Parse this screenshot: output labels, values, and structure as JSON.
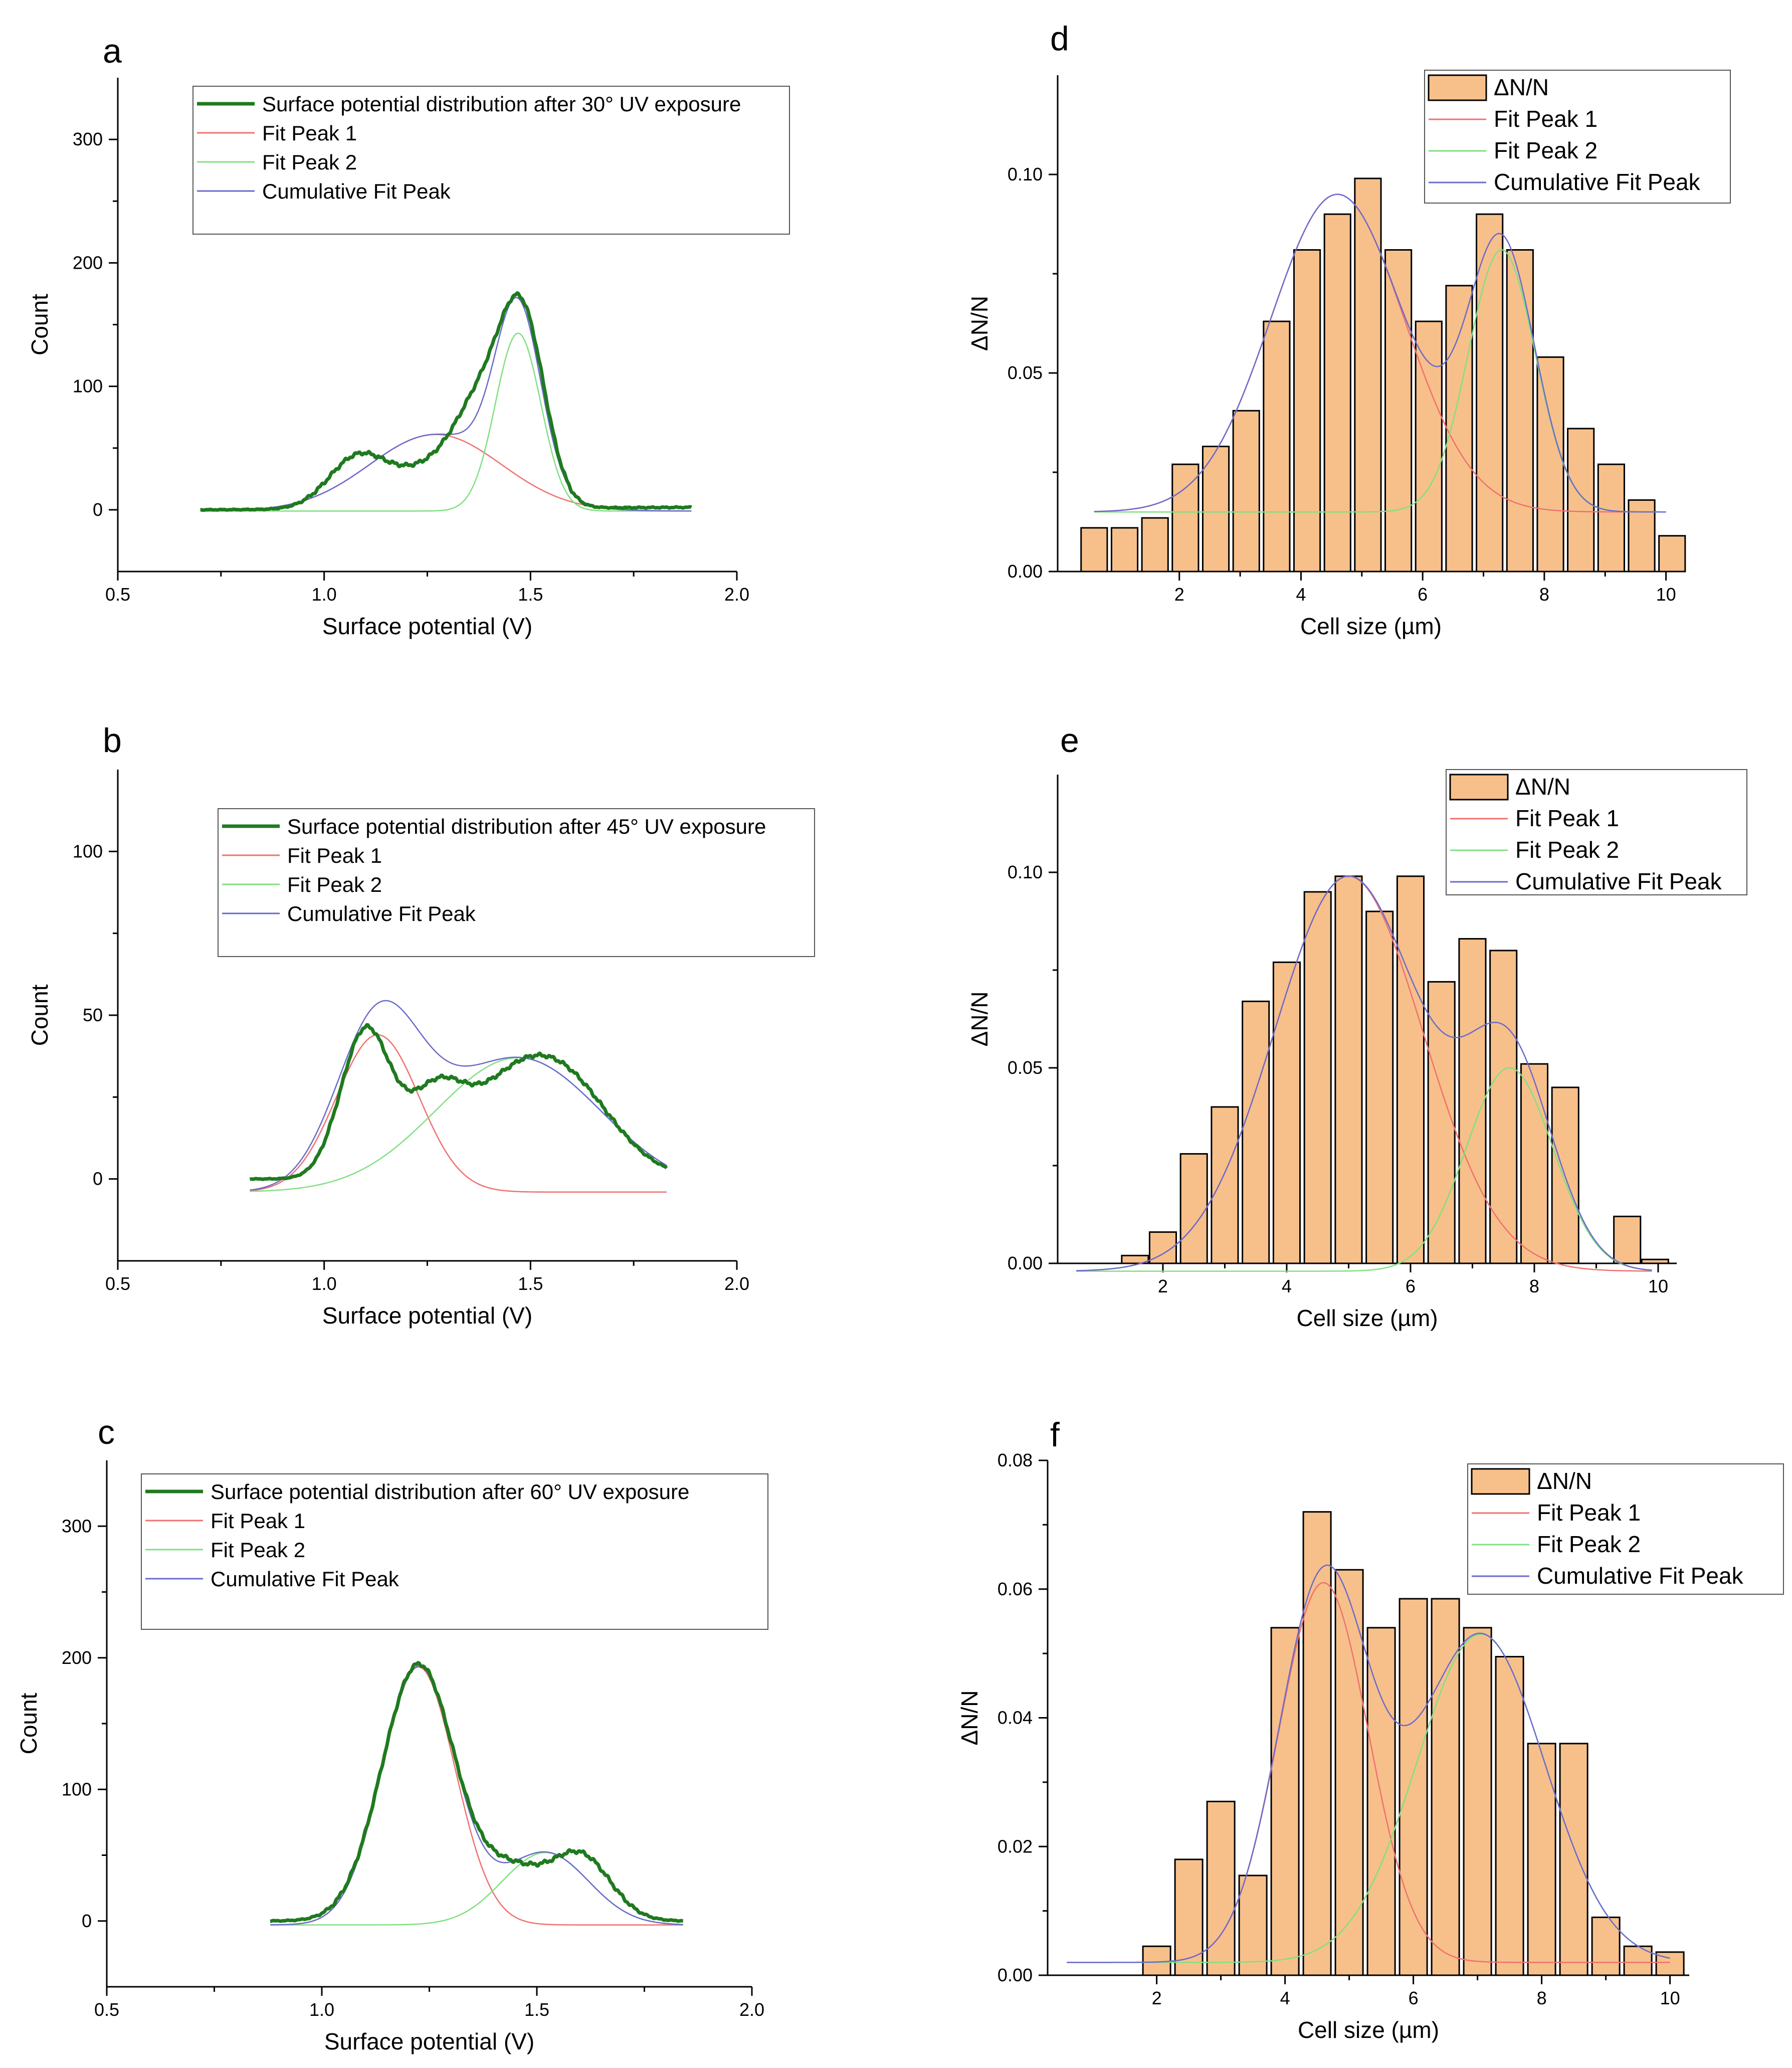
{
  "legend_labels": {
    "fit1": "Fit Peak 1",
    "fit2": "Fit Peak 2",
    "cum": "Cumulative Fit Peak",
    "hist": "ΔN/N"
  },
  "colors": {
    "data_line": "#1f7a1f",
    "fit1": "#f07070",
    "fit2": "#80e080",
    "cum": "#6a6acc",
    "bar_fill": "#f7c08a",
    "bar_stroke": "#000000"
  },
  "chart_data": [
    {
      "id": "a",
      "panel_label": "a",
      "type": "line",
      "xlabel": "Surface potential (V)",
      "ylabel": "Count",
      "xlim": [
        0.5,
        2.0
      ],
      "ylim": [
        -50,
        350
      ],
      "xticks": [
        "0.5",
        "1.0",
        "1.5",
        "2.0"
      ],
      "yticks": [
        "0",
        "100",
        "200",
        "300"
      ],
      "legend_title": "Surface potential distribution after 30° UV exposure",
      "x_range": [
        0.7,
        1.89
      ],
      "baseline": -1,
      "peak1": {
        "center": 1.27,
        "sigma": 0.16,
        "amp": 62
      },
      "peak2": {
        "center": 1.47,
        "sigma": 0.055,
        "amp": 144
      },
      "data_bumps": [
        [
          1.08,
          0.07,
          40
        ],
        [
          1.28,
          0.1,
          35
        ],
        [
          1.38,
          0.06,
          60
        ],
        [
          1.48,
          0.055,
          150
        ]
      ],
      "data_end": 2
    },
    {
      "id": "b",
      "panel_label": "b",
      "type": "line",
      "xlabel": "Surface potential (V)",
      "ylabel": "Count",
      "xlim": [
        0.5,
        2.0
      ],
      "ylim": [
        -25,
        125
      ],
      "xticks": [
        "0.5",
        "1.0",
        "1.5",
        "2.0"
      ],
      "yticks": [
        "0",
        "50",
        "100"
      ],
      "legend_title": "Surface potential distribution after 45° UV exposure",
      "x_range": [
        0.82,
        1.83
      ],
      "baseline": -4,
      "peak1": {
        "center": 1.13,
        "sigma": 0.1,
        "amp": 48
      },
      "peak2": {
        "center": 1.47,
        "sigma": 0.2,
        "amp": 41
      },
      "data_bumps": [
        [
          1.1,
          0.06,
          45
        ],
        [
          1.27,
          0.07,
          25
        ],
        [
          1.55,
          0.13,
          35
        ],
        [
          1.42,
          0.08,
          8
        ]
      ],
      "data_end": 0
    },
    {
      "id": "c",
      "panel_label": "c",
      "type": "line",
      "xlabel": "Surface potential (V)",
      "ylabel": "Count",
      "xlim": [
        0.5,
        2.0
      ],
      "ylim": [
        -50,
        350
      ],
      "xticks": [
        "0.5",
        "1.0",
        "1.5",
        "2.0"
      ],
      "yticks": [
        "0",
        "100",
        "200",
        "300"
      ],
      "legend_title": "Surface potential distribution after 60° UV exposure",
      "x_range": [
        0.88,
        1.84
      ],
      "baseline": -3,
      "peak1": {
        "center": 1.225,
        "sigma": 0.085,
        "amp": 196
      },
      "peak2": {
        "center": 1.52,
        "sigma": 0.1,
        "amp": 55
      },
      "data_bumps": [
        [
          1.225,
          0.085,
          195
        ],
        [
          1.44,
          0.07,
          35
        ],
        [
          1.6,
          0.07,
          50
        ]
      ],
      "data_end": 0
    },
    {
      "id": "d",
      "panel_label": "d",
      "type": "bar",
      "xlabel": "Cell size (µm)",
      "ylabel": "ΔN/N",
      "xlim": [
        0.0,
        10.3
      ],
      "ylim": [
        0.0,
        0.125
      ],
      "xticks": [
        "2",
        "4",
        "6",
        "8",
        "10"
      ],
      "yticks": [
        "0.00",
        "0.05",
        "0.10"
      ],
      "bar_x": [
        0.6,
        1.1,
        1.6,
        2.1,
        2.6,
        3.1,
        3.6,
        4.1,
        4.6,
        5.1,
        5.6,
        6.1,
        6.6,
        7.1,
        7.6,
        8.1,
        8.6,
        9.1,
        9.6,
        10.1
      ],
      "values": [
        0.011,
        0.011,
        0.0135,
        0.027,
        0.0315,
        0.0405,
        0.063,
        0.081,
        0.09,
        0.099,
        0.081,
        0.063,
        0.072,
        0.09,
        0.081,
        0.054,
        0.036,
        0.027,
        0.018,
        0.009
      ],
      "fit_x_range": [
        0.6,
        10.0
      ],
      "baseline": 0.015,
      "peak1": {
        "center": 4.6,
        "sigma": 1.1,
        "amp": 0.08
      },
      "peak2": {
        "center": 7.3,
        "sigma": 0.55,
        "amp": 0.066
      }
    },
    {
      "id": "e",
      "panel_label": "e",
      "type": "bar",
      "xlabel": "Cell size (µm)",
      "ylabel": "ΔN/N",
      "xlim": [
        0.3,
        10.3
      ],
      "ylim": [
        0.0,
        0.125
      ],
      "xticks": [
        "2",
        "4",
        "6",
        "8",
        "10"
      ],
      "yticks": [
        "0.00",
        "0.05",
        "0.10"
      ],
      "bar_x": [
        1.55,
        2.0,
        2.5,
        3.0,
        3.5,
        4.0,
        4.5,
        5.0,
        5.5,
        6.0,
        6.5,
        7.0,
        7.5,
        8.0,
        8.5,
        9.5,
        9.95
      ],
      "values": [
        0.002,
        0.008,
        0.028,
        0.04,
        0.067,
        0.077,
        0.095,
        0.099,
        0.09,
        0.099,
        0.072,
        0.083,
        0.08,
        0.051,
        0.045,
        0.012,
        0.001
      ],
      "fit_x_range": [
        0.6,
        9.9
      ],
      "baseline": -0.002,
      "peak1": {
        "center": 5.0,
        "sigma": 1.2,
        "amp": 0.101
      },
      "peak2": {
        "center": 7.6,
        "sigma": 0.7,
        "amp": 0.052
      }
    },
    {
      "id": "f",
      "panel_label": "f",
      "type": "bar",
      "xlabel": "Cell size (µm)",
      "ylabel": "ΔN/N",
      "xlim": [
        0.3,
        10.3
      ],
      "ylim": [
        0.0,
        0.08
      ],
      "xticks": [
        "2",
        "4",
        "6",
        "8",
        "10"
      ],
      "yticks": [
        "0.00",
        "0.02",
        "0.04",
        "0.06",
        "0.08"
      ],
      "bar_x": [
        2.0,
        2.5,
        3.0,
        3.5,
        4.0,
        4.5,
        5.0,
        5.5,
        6.0,
        6.5,
        7.0,
        7.5,
        8.0,
        8.5,
        9.0,
        9.5,
        10.0
      ],
      "values": [
        0.0045,
        0.018,
        0.027,
        0.0155,
        0.054,
        0.072,
        0.063,
        0.054,
        0.0585,
        0.0585,
        0.054,
        0.0495,
        0.036,
        0.036,
        0.009,
        0.0045,
        0.0036
      ],
      "fit_x_range": [
        0.6,
        10.0
      ],
      "baseline": 0.002,
      "peak1": {
        "center": 4.6,
        "sigma": 0.7,
        "amp": 0.059
      },
      "peak2": {
        "center": 7.05,
        "sigma": 1.0,
        "amp": 0.051
      }
    }
  ]
}
